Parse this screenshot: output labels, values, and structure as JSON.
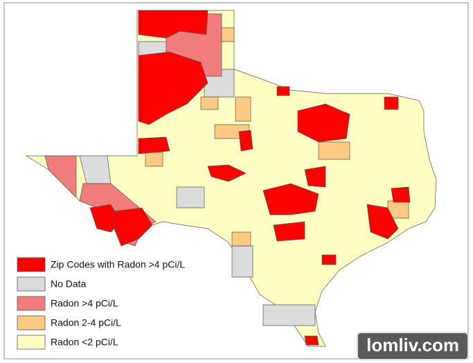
{
  "legend": [
    {
      "label": "Zip Codes with Radon >4 pCi/L",
      "color": "#ff0000"
    },
    {
      "label": "No Data",
      "color": "#dcdcdc"
    },
    {
      "label": "Radon >4 pCi/L",
      "color": "#f27b7b"
    },
    {
      "label": "Radon 2-4 pCi/L",
      "color": "#fdca84"
    },
    {
      "label": "Radon <2 pCi/L",
      "color": "#ffffc4"
    }
  ],
  "watermark": "lomliv.com"
}
